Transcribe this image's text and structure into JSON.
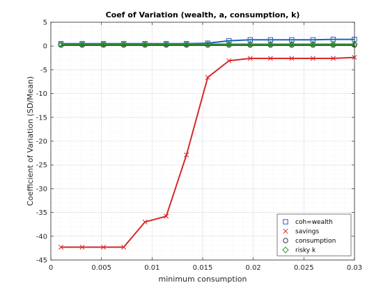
{
  "chart_data": {
    "type": "line",
    "title": "Coef of Variation (wealth, a, consumption, k)",
    "xlabel": "minimum consumption",
    "ylabel": "Coefficient of Variation (SD/Mean)",
    "xlim": [
      0,
      0.03
    ],
    "ylim": [
      -45,
      5
    ],
    "xticks": [
      0,
      0.005,
      0.01,
      0.015,
      0.02,
      0.025,
      0.03
    ],
    "xtick_labels": [
      "0",
      "0.005",
      "0.01",
      "0.015",
      "0.02",
      "0.025",
      "0.03"
    ],
    "yticks": [
      5,
      0,
      -5,
      -10,
      -15,
      -20,
      -25,
      -30,
      -35,
      -40,
      -45
    ],
    "ytick_labels": [
      "5",
      "0",
      "-5",
      "-10",
      "-15",
      "-20",
      "-25",
      "-30",
      "-35",
      "-40",
      "-45"
    ],
    "grid": true,
    "legend_position": "bottom-right",
    "x": [
      0.001,
      0.0031,
      0.0052,
      0.0072,
      0.0093,
      0.0114,
      0.0134,
      0.0155,
      0.0176,
      0.0197,
      0.0217,
      0.0238,
      0.0259,
      0.0279,
      0.03
    ],
    "series": [
      {
        "name": "coh=wealth",
        "color": "#1f5fbf",
        "marker": "square",
        "values": [
          0.5,
          0.5,
          0.5,
          0.5,
          0.5,
          0.5,
          0.5,
          0.6,
          1.1,
          1.3,
          1.3,
          1.3,
          1.3,
          1.4,
          1.4
        ]
      },
      {
        "name": "savings",
        "color": "#d62728",
        "marker": "x",
        "values": [
          -42.3,
          -42.3,
          -42.3,
          -42.3,
          -37.0,
          -35.8,
          -22.9,
          -6.6,
          -3.1,
          -2.6,
          -2.6,
          -2.6,
          -2.6,
          -2.6,
          -2.4
        ]
      },
      {
        "name": "consumption",
        "color": "#333333",
        "marker": "circle",
        "values": [
          0.2,
          0.2,
          0.2,
          0.2,
          0.2,
          0.2,
          0.2,
          0.2,
          0.2,
          0.2,
          0.2,
          0.2,
          0.2,
          0.2,
          0.2
        ]
      },
      {
        "name": "risky k",
        "color": "#2ca02c",
        "marker": "diamond",
        "values": [
          0.4,
          0.4,
          0.4,
          0.4,
          0.4,
          0.4,
          0.4,
          0.4,
          0.4,
          0.4,
          0.4,
          0.4,
          0.4,
          0.4,
          0.4
        ]
      }
    ]
  }
}
